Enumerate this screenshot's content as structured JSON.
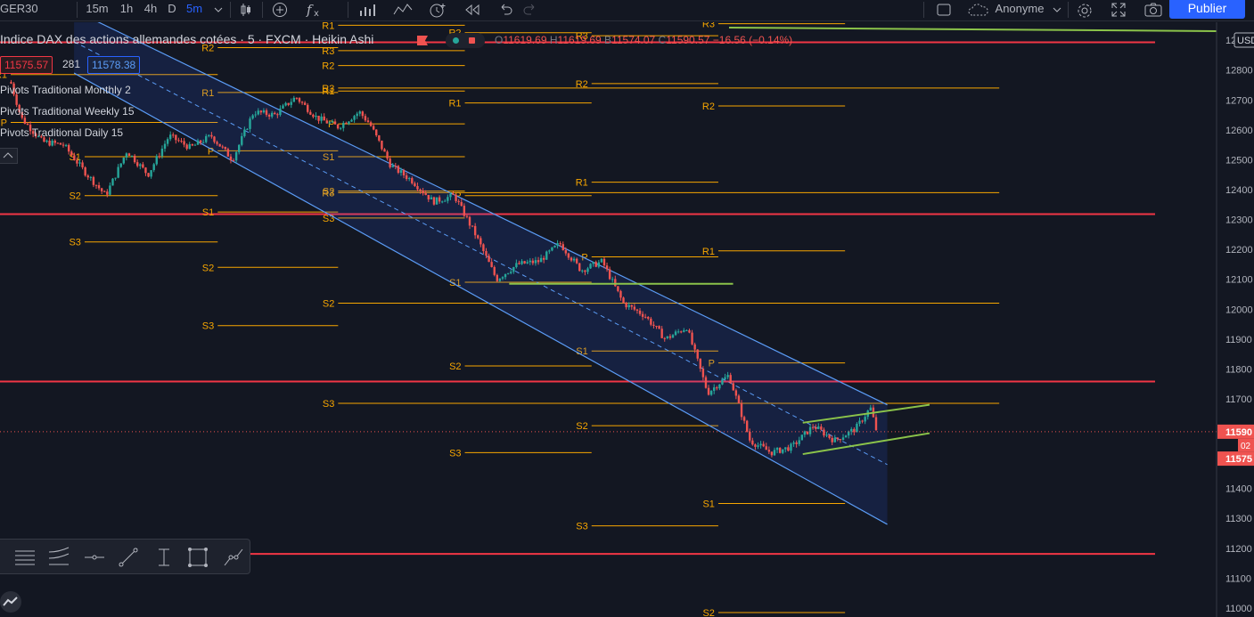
{
  "toolbar": {
    "symbol": "GER30",
    "intervals": [
      "15m",
      "1h",
      "4h",
      "D",
      "5m"
    ],
    "selected_interval": "5m",
    "layout_name": "Anonyme",
    "publish_label": "Publier"
  },
  "legend": {
    "title": "Indice DAX des actions allemandes cotées · 5 · FXCM · Heikin Ashi",
    "O": "11619.69",
    "H": "11619.69",
    "B": "11574.07",
    "C": "11590.57",
    "change": "−16.56 (−0.14%)",
    "sell_price": "11575.57",
    "spread": "281",
    "buy_price": "11578.38"
  },
  "indicators": [
    "Pivots Traditional Monthly 2",
    "Pivots Traditional Weekly 15",
    "Pivots Traditional Daily 15"
  ],
  "colors": {
    "background": "#131722",
    "bull": "#26a69a",
    "bear": "#ef5350",
    "pivot": "#f7a600",
    "resistance_line": "#f23645",
    "channel": "#2962ff",
    "trendline": "#8bc34a",
    "accent": "#2962ff"
  },
  "chart_data": {
    "type": "candlestick",
    "candle_style": "Heikin Ashi",
    "price_axis_currency": "USD",
    "price_ticks": [
      11000,
      11100,
      11200,
      11300,
      11400,
      11500,
      11600,
      11700,
      11800,
      11900,
      12000,
      12100,
      12200,
      12300,
      12400,
      12500,
      12600,
      12700,
      12800,
      12900
    ],
    "ylim": [
      10970,
      12960
    ],
    "price_path": [
      [
        0,
        12760
      ],
      [
        0.5,
        12640
      ],
      [
        1.5,
        12560
      ],
      [
        2.5,
        12550
      ],
      [
        3.5,
        12460
      ],
      [
        4.5,
        12380
      ],
      [
        5.5,
        12530
      ],
      [
        6.5,
        12450
      ],
      [
        7.5,
        12580
      ],
      [
        8.5,
        12540
      ],
      [
        9.5,
        12580
      ],
      [
        10.5,
        12500
      ],
      [
        11.5,
        12660
      ],
      [
        12.5,
        12650
      ],
      [
        13.5,
        12710
      ],
      [
        14.5,
        12640
      ],
      [
        15.5,
        12610
      ],
      [
        16.5,
        12660
      ],
      [
        17,
        12620
      ],
      [
        18,
        12480
      ],
      [
        19,
        12430
      ],
      [
        20,
        12360
      ],
      [
        21,
        12380
      ],
      [
        22,
        12250
      ],
      [
        23,
        12100
      ],
      [
        24,
        12150
      ],
      [
        25,
        12160
      ],
      [
        26,
        12220
      ],
      [
        27,
        12130
      ],
      [
        28,
        12160
      ],
      [
        29,
        12020
      ],
      [
        30,
        11980
      ],
      [
        31,
        11900
      ],
      [
        32,
        11940
      ],
      [
        33,
        11720
      ],
      [
        34,
        11780
      ],
      [
        35,
        11560
      ],
      [
        36,
        11520
      ],
      [
        37,
        11540
      ],
      [
        38,
        11610
      ],
      [
        39,
        11560
      ],
      [
        40,
        11600
      ],
      [
        40.7,
        11670
      ],
      [
        41,
        11590
      ]
    ],
    "last_price": "11590",
    "last_price_tag_2": "11575",
    "countdown": "02",
    "horizontal_levels": [
      12893,
      12318,
      11758,
      11181
    ],
    "channel": {
      "upper": [
        [
          3.0,
          13000
        ],
        [
          41.5,
          11680
        ]
      ],
      "lower": [
        [
          3.0,
          12790
        ],
        [
          41.5,
          11280
        ]
      ]
    },
    "support_line_price": 12085,
    "wedge": {
      "upper": [
        [
          37.5,
          11620
        ],
        [
          43.5,
          11680
        ]
      ],
      "lower": [
        [
          37.5,
          11515
        ],
        [
          43.5,
          11585
        ]
      ]
    },
    "pivot_levels": [
      {
        "label": "R1",
        "x0": 0,
        "x1": 9.8,
        "price": 12785
      },
      {
        "label": "P",
        "x0": 0,
        "x1": 9.8,
        "price": 12625
      },
      {
        "label": "S1",
        "x0": 3.5,
        "x1": 9.8,
        "price": 12510
      },
      {
        "label": "S2",
        "x0": 3.5,
        "x1": 9.8,
        "price": 12380
      },
      {
        "label": "S3",
        "x0": 3.5,
        "x1": 9.8,
        "price": 12225
      },
      {
        "label": "R2",
        "x0": 9.8,
        "x1": 15.5,
        "price": 12875
      },
      {
        "label": "R1",
        "x0": 9.8,
        "x1": 15.5,
        "price": 12725
      },
      {
        "label": "P",
        "x0": 9.8,
        "x1": 15.5,
        "price": 12530
      },
      {
        "label": "S1",
        "x0": 9.8,
        "x1": 15.5,
        "price": 12325
      },
      {
        "label": "S2",
        "x0": 9.8,
        "x1": 15.5,
        "price": 12140
      },
      {
        "label": "S3",
        "x0": 9.8,
        "x1": 15.5,
        "price": 11945
      },
      {
        "label": "R1",
        "x0": 15.5,
        "x1": 21.5,
        "price": 12950
      },
      {
        "label": "R3",
        "x0": 15.5,
        "x1": 21.5,
        "price": 12865
      },
      {
        "label": "R2",
        "x0": 15.5,
        "x1": 21.5,
        "price": 12815
      },
      {
        "label": "R1",
        "x0": 15.5,
        "x1": 21.5,
        "price": 12730
      },
      {
        "label": "P",
        "x0": 15.5,
        "x1": 21.5,
        "price": 12620
      },
      {
        "label": "S1",
        "x0": 15.5,
        "x1": 21.5,
        "price": 12510
      },
      {
        "label": "S2",
        "x0": 15.5,
        "x1": 21.5,
        "price": 12395
      },
      {
        "label": "S3",
        "x0": 15.5,
        "x1": 21.5,
        "price": 12305
      },
      {
        "label": "R2",
        "x0": 21.5,
        "x1": 27.5,
        "price": 12925
      },
      {
        "label": "R1",
        "x0": 21.5,
        "x1": 27.5,
        "price": 12690
      },
      {
        "label": "P",
        "x0": 21.5,
        "x1": 27.5,
        "price": 12380
      },
      {
        "label": "S1",
        "x0": 21.5,
        "x1": 27.5,
        "price": 12090
      },
      {
        "label": "S2",
        "x0": 21.5,
        "x1": 27.5,
        "price": 11810
      },
      {
        "label": "S3",
        "x0": 21.5,
        "x1": 27.5,
        "price": 11520
      },
      {
        "label": "R3",
        "x0": 27.5,
        "x1": 33.5,
        "price": 12915
      },
      {
        "label": "R2",
        "x0": 27.5,
        "x1": 33.5,
        "price": 12755
      },
      {
        "label": "R1",
        "x0": 27.5,
        "x1": 33.5,
        "price": 12425
      },
      {
        "label": "P",
        "x0": 27.5,
        "x1": 33.5,
        "price": 12175
      },
      {
        "label": "S1",
        "x0": 27.5,
        "x1": 33.5,
        "price": 11860
      },
      {
        "label": "S2",
        "x0": 27.5,
        "x1": 33.5,
        "price": 11610
      },
      {
        "label": "S3",
        "x0": 27.5,
        "x1": 33.5,
        "price": 11275
      },
      {
        "label": "R3",
        "x0": 33.5,
        "x1": 39.5,
        "price": 12955
      },
      {
        "label": "R2",
        "x0": 33.5,
        "x1": 39.5,
        "price": 12680
      },
      {
        "label": "R1",
        "x0": 33.5,
        "x1": 39.5,
        "price": 12195
      },
      {
        "label": "P",
        "x0": 33.5,
        "x1": 39.5,
        "price": 11820
      },
      {
        "label": "S1",
        "x0": 33.5,
        "x1": 39.5,
        "price": 11350
      },
      {
        "label": "S2",
        "x0": 33.5,
        "x1": 39.5,
        "price": 10985
      },
      {
        "label": "R3",
        "x0": 15.5,
        "x1": 46.8,
        "price": 12740
      },
      {
        "label": "R3",
        "x0": 15.5,
        "x1": 46.8,
        "price": 12390
      },
      {
        "label": "S2",
        "x0": 15.5,
        "x1": 46.8,
        "price": 12020
      },
      {
        "label": "S3",
        "x0": 15.5,
        "x1": 46.8,
        "price": 11685
      }
    ]
  }
}
